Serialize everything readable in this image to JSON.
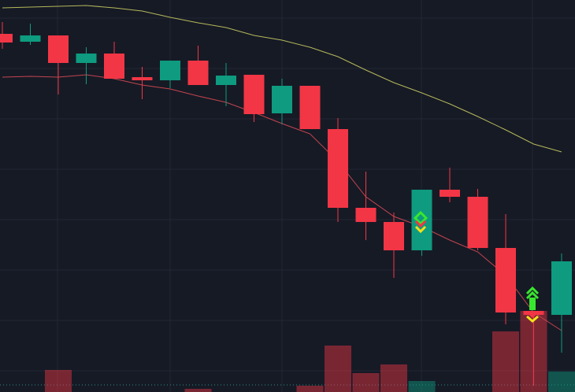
{
  "chart_data": {
    "type": "candlestick",
    "categories": [
      null,
      null,
      null,
      null,
      null,
      null,
      null,
      null,
      null,
      null,
      null,
      null,
      null,
      null,
      null,
      null,
      null,
      null,
      null,
      null,
      null
    ],
    "open": [
      457,
      447,
      455,
      420,
      432,
      402,
      398,
      423,
      392,
      405,
      356,
      391,
      336,
      236,
      218,
      182,
      259,
      250,
      185,
      105,
      100
    ],
    "high": [
      472,
      470,
      455,
      440,
      447,
      415,
      423,
      442,
      420,
      405,
      400,
      391,
      350,
      282,
      230,
      259,
      287,
      260,
      228,
      105,
      178
    ],
    "low": [
      438,
      443,
      380,
      393,
      400,
      374,
      388,
      392,
      365,
      345,
      342,
      336,
      218,
      195,
      147,
      175,
      243,
      182,
      88,
      10,
      52
    ],
    "close": [
      446,
      455,
      420,
      432,
      400,
      398,
      423,
      392,
      404,
      355,
      391,
      336,
      236,
      218,
      182,
      259,
      250,
      185,
      103,
      100,
      168
    ],
    "volume": [
      null,
      null,
      28,
      null,
      null,
      null,
      null,
      4,
      null,
      null,
      null,
      8,
      59,
      24,
      35,
      14,
      null,
      null,
      77,
      103,
      26
    ],
    "moving_averages": [
      {
        "color": "#b5b85a",
        "values": [
          490,
          491,
          492,
          493,
          490,
          486,
          478,
          471,
          465,
          455,
          449,
          440,
          428,
          411,
          395,
          382,
          368,
          352,
          335,
          317,
          307
        ]
      },
      {
        "color": "#c2454f",
        "values": [
          402,
          403,
          402,
          405,
          400,
          392,
          387,
          378,
          370,
          357,
          343,
          330,
          295,
          250,
          225,
          212,
          195,
          180,
          150,
          103,
          80
        ]
      }
    ],
    "up_color": "#0e9b80",
    "down_color": "#f23645",
    "ylim": [
      2,
      500
    ],
    "volume_lim": [
      0,
      200
    ]
  }
}
